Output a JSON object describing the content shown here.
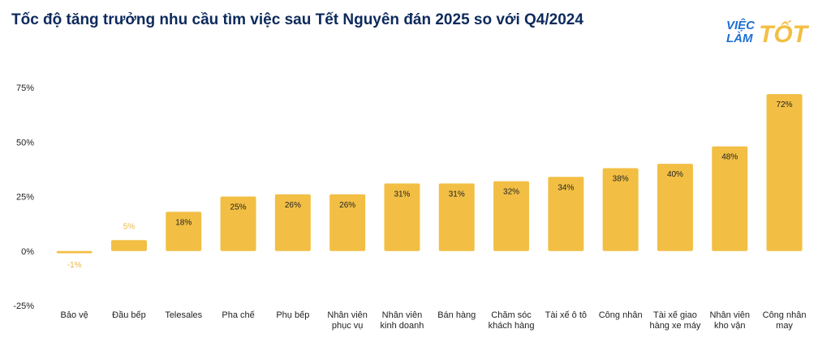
{
  "title": "Tốc độ tăng trưởng nhu cầu tìm việc sau Tết Nguyên đán 2025 so với Q4/2024",
  "logo": {
    "line1": "VIỆC",
    "line2": "LÀM",
    "line3": "TỐT"
  },
  "colors": {
    "bar": "#f2bf44",
    "title": "#0d2a5c",
    "logo_blue": "#1f6fd1",
    "logo_yellow": "#f2bf44"
  },
  "chart_data": {
    "type": "bar",
    "categories": [
      [
        "Bảo vệ"
      ],
      [
        "Đầu bếp"
      ],
      [
        "Telesales"
      ],
      [
        "Pha chế"
      ],
      [
        "Phụ bếp"
      ],
      [
        "Nhân viên",
        "phục vụ"
      ],
      [
        "Nhân viên",
        "kinh doanh"
      ],
      [
        "Bán hàng"
      ],
      [
        "Chăm sóc",
        "khách hàng"
      ],
      [
        "Tài xế ô tô"
      ],
      [
        "Công nhân"
      ],
      [
        "Tài xế giao",
        "hàng xe máy"
      ],
      [
        "Nhân viên",
        "kho vận"
      ],
      [
        "Công nhân",
        "may"
      ]
    ],
    "values": [
      -1,
      5,
      18,
      25,
      26,
      26,
      31,
      31,
      32,
      34,
      38,
      40,
      48,
      72
    ],
    "value_labels": [
      "-1%",
      "5%",
      "18%",
      "25%",
      "26%",
      "26%",
      "31%",
      "31%",
      "32%",
      "34%",
      "38%",
      "40%",
      "48%",
      "72%"
    ],
    "ylim": [
      -25,
      75
    ],
    "yticks": [
      -25,
      0,
      25,
      50,
      75
    ],
    "ytick_labels": [
      "-25%",
      "0%",
      "25%",
      "50%",
      "75%"
    ],
    "grid": false,
    "legend": "none"
  }
}
